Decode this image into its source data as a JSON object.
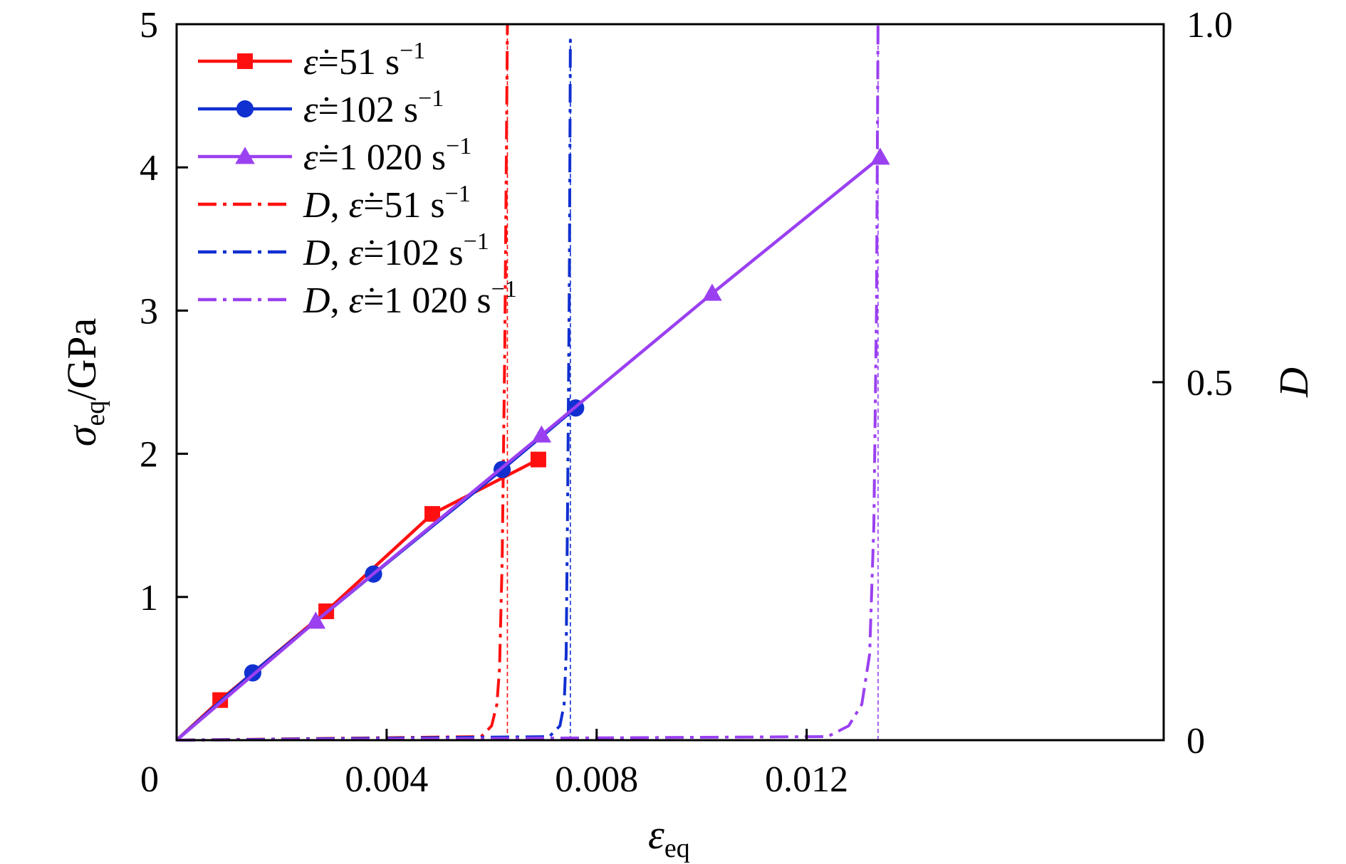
{
  "chart_data": {
    "type": "line",
    "x_axis": {
      "label_symbol": "ε",
      "label_subscript": "eq",
      "range": [
        0,
        0.0188
      ],
      "ticks": [
        {
          "value": 0,
          "label": "0"
        },
        {
          "value": 0.004,
          "label": "0.004"
        },
        {
          "value": 0.008,
          "label": "0.008"
        },
        {
          "value": 0.012,
          "label": "0.012"
        }
      ]
    },
    "y_axis_left": {
      "label_symbol": "σ",
      "label_subscript": "eq",
      "label_unit": "/GPa",
      "range": [
        0,
        5
      ],
      "ticks": [
        {
          "value": 1,
          "label": "1"
        },
        {
          "value": 2,
          "label": "2"
        },
        {
          "value": 3,
          "label": "3"
        },
        {
          "value": 4,
          "label": "4"
        },
        {
          "value": 5,
          "label": "5"
        }
      ]
    },
    "y_axis_right": {
      "label": "D",
      "range": [
        0,
        1.0
      ],
      "ticks": [
        {
          "value": 0,
          "label": "0"
        },
        {
          "value": 0.5,
          "label": "0.5"
        },
        {
          "value": 1.0,
          "label": "1.0"
        }
      ]
    },
    "series": [
      {
        "name": "ε̇=51 s⁻¹",
        "legend_prefix": "",
        "legend_rate": "=51 s",
        "color": "#ff1010",
        "axis": "left",
        "style": "solid",
        "marker": "square",
        "points": [
          [
            0,
            0
          ],
          [
            0.00083,
            0.28
          ],
          [
            0.00285,
            0.9
          ],
          [
            0.00487,
            1.58
          ],
          [
            0.00689,
            1.96
          ]
        ]
      },
      {
        "name": "ε̇=102 s⁻¹",
        "legend_prefix": "",
        "legend_rate": "=102 s",
        "color": "#1030d0",
        "axis": "left",
        "style": "solid",
        "marker": "circle",
        "points": [
          [
            0,
            0
          ],
          [
            0.00145,
            0.47
          ],
          [
            0.00375,
            1.16
          ],
          [
            0.0062,
            1.89
          ],
          [
            0.0076,
            2.32
          ]
        ]
      },
      {
        "name": "ε̇=1 020 s⁻¹",
        "legend_prefix": "",
        "legend_rate": "=1 020 s",
        "color": "#9a40f0",
        "axis": "left",
        "style": "solid",
        "marker": "triangle",
        "points": [
          [
            0,
            0
          ],
          [
            0.00265,
            0.83
          ],
          [
            0.00695,
            2.13
          ],
          [
            0.0102,
            3.12
          ],
          [
            0.0134,
            4.07
          ]
        ]
      },
      {
        "name": "D, ε̇=51 s⁻¹",
        "legend_prefix": "D, ",
        "legend_rate": "=51 s",
        "color": "#ff1010",
        "axis": "right",
        "style": "dashdot",
        "marker": "none",
        "points": [
          [
            0,
            0
          ],
          [
            0.0058,
            0.005
          ],
          [
            0.006,
            0.02
          ],
          [
            0.0061,
            0.05
          ],
          [
            0.00615,
            0.1
          ],
          [
            0.0062,
            0.25
          ],
          [
            0.00625,
            0.55
          ],
          [
            0.0063,
            1.0
          ]
        ]
      },
      {
        "name": "D, ε̇=102 s⁻¹",
        "legend_prefix": "D, ",
        "legend_rate": "=102 s",
        "color": "#1030d0",
        "axis": "right",
        "style": "dashdot",
        "marker": "none",
        "points": [
          [
            0,
            0
          ],
          [
            0.0071,
            0.005
          ],
          [
            0.0073,
            0.02
          ],
          [
            0.00738,
            0.05
          ],
          [
            0.00742,
            0.12
          ],
          [
            0.00745,
            0.35
          ],
          [
            0.00748,
            0.65
          ],
          [
            0.0075,
            0.98
          ]
        ]
      },
      {
        "name": "D, ε̇=1 020 s⁻¹",
        "legend_prefix": "D, ",
        "legend_rate": "=1 020 s",
        "color": "#9a40f0",
        "axis": "right",
        "style": "dashdot",
        "marker": "none",
        "points": [
          [
            0,
            0
          ],
          [
            0.0124,
            0.005
          ],
          [
            0.0128,
            0.02
          ],
          [
            0.01305,
            0.05
          ],
          [
            0.0132,
            0.12
          ],
          [
            0.01328,
            0.3
          ],
          [
            0.01333,
            0.6
          ],
          [
            0.01336,
            1.0
          ]
        ]
      }
    ],
    "legend_position": "top-left",
    "grid": false
  }
}
